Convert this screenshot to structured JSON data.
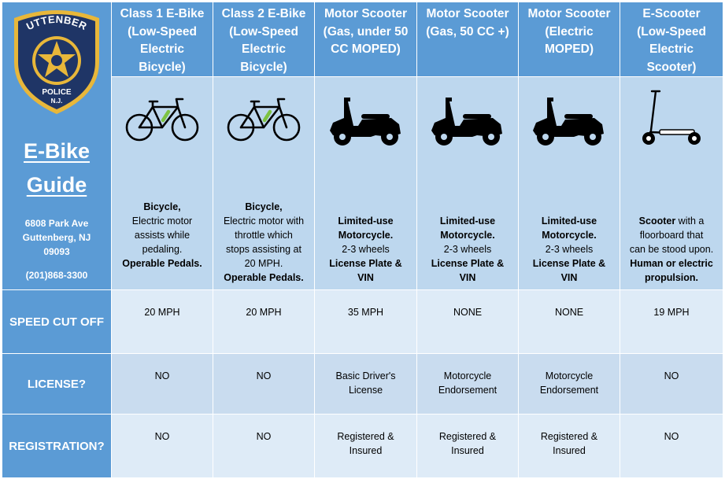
{
  "logo": {
    "name": "GUTTENBERG",
    "line1": "POLICE",
    "line2": "N.J."
  },
  "sidebar": {
    "title_line1": "E-Bike",
    "title_line2": "Guide",
    "address_line1": "6808 Park Ave",
    "address_line2": "Guttenberg, NJ",
    "address_line3": "09093",
    "phone": "(201)868-3300"
  },
  "columns": [
    {
      "header": [
        "Class 1 E-Bike",
        "(Low-Speed",
        "Electric",
        "Bicycle)"
      ],
      "icon": "bicycle-icon",
      "desc": [
        {
          "text": "Bicycle,",
          "bold": true
        },
        {
          "text": "Electric motor",
          "bold": false
        },
        {
          "text": "assists while",
          "bold": false
        },
        {
          "text": "pedaling.",
          "bold": false
        },
        {
          "text": "Operable Pedals.",
          "bold": true
        }
      ]
    },
    {
      "header": [
        "Class 2 E-Bike",
        "(Low-Speed",
        "Electric",
        "Bicycle)"
      ],
      "icon": "bicycle-icon",
      "desc": [
        {
          "text": "Bicycle,",
          "bold": true
        },
        {
          "text": "Electric motor with",
          "bold": false
        },
        {
          "text": "throttle which",
          "bold": false
        },
        {
          "text": "stops assisting at",
          "bold": false
        },
        {
          "text": "20 MPH.",
          "bold": false
        },
        {
          "text": "Operable Pedals.",
          "bold": true
        }
      ]
    },
    {
      "header": [
        "Motor Scooter",
        "(Gas, under 50",
        "CC MOPED)"
      ],
      "icon": "moped-icon",
      "desc": [
        {
          "text": "Limited-use",
          "bold": true
        },
        {
          "text": "Motorcycle.",
          "bold": true
        },
        {
          "text": "2-3 wheels",
          "bold": false
        },
        {
          "text": "License Plate &",
          "bold": true
        },
        {
          "text": "VIN",
          "bold": true
        }
      ]
    },
    {
      "header": [
        "Motor Scooter",
        "(Gas, 50 CC +)"
      ],
      "icon": "moped-icon",
      "desc": [
        {
          "text": "Limited-use",
          "bold": true
        },
        {
          "text": "Motorcycle.",
          "bold": true
        },
        {
          "text": "2-3 wheels",
          "bold": false
        },
        {
          "text": "License Plate &",
          "bold": true
        },
        {
          "text": "VIN",
          "bold": true
        }
      ]
    },
    {
      "header": [
        "Motor Scooter",
        "(Electric",
        "MOPED)"
      ],
      "icon": "moped-icon",
      "desc": [
        {
          "text": "Limited-use",
          "bold": true
        },
        {
          "text": "Motorcycle.",
          "bold": true
        },
        {
          "text": "2-3 wheels",
          "bold": false
        },
        {
          "text": "License Plate &",
          "bold": true
        },
        {
          "text": "VIN",
          "bold": true
        }
      ]
    },
    {
      "header": [
        "E-Scooter",
        "(Low-Speed",
        "Electric",
        "Scooter)"
      ],
      "icon": "kick-scooter-icon",
      "desc": [
        {
          "text": "Scooter with a",
          "bold": false,
          "lead_bold": "Scooter"
        },
        {
          "text": "floorboard that",
          "bold": false
        },
        {
          "text": "can be stood upon.",
          "bold": false
        },
        {
          "text": "Human or electric",
          "bold": true
        },
        {
          "text": "propulsion.",
          "bold": true
        }
      ]
    }
  ],
  "rows": [
    {
      "label": "SPEED CUT OFF",
      "values": [
        [
          "20 MPH"
        ],
        [
          "20 MPH"
        ],
        [
          "35 MPH"
        ],
        [
          "NONE"
        ],
        [
          "NONE"
        ],
        [
          "19 MPH"
        ]
      ]
    },
    {
      "label": "LICENSE?",
      "values": [
        [
          "NO"
        ],
        [
          "NO"
        ],
        [
          "Basic Driver's",
          "License"
        ],
        [
          "Motorcycle",
          "Endorsement"
        ],
        [
          "Motorcycle",
          "Endorsement"
        ],
        [
          "NO"
        ]
      ]
    },
    {
      "label": "REGISTRATION?",
      "values": [
        [
          "NO"
        ],
        [
          "NO"
        ],
        [
          "Registered &",
          "Insured"
        ],
        [
          "Registered &",
          "Insured"
        ],
        [
          "Registered &",
          "Insured"
        ],
        [
          "NO"
        ]
      ]
    }
  ],
  "colors": {
    "header_blue": "#5b9bd5",
    "desc_blue": "#bdd7ee",
    "row_light": "#deebf7",
    "row_mid": "#c9dcef",
    "bike_accent": "#7dc242",
    "badge_navy": "#1f3566",
    "badge_gold": "#e8b73a"
  }
}
